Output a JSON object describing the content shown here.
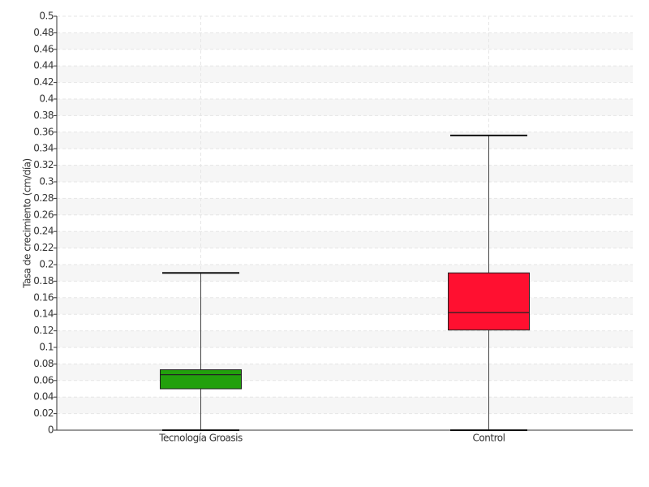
{
  "chart_data": {
    "type": "box",
    "y_label": "Tasa de crecimiento (cm/día)",
    "categories": [
      "Tecnología Groasis",
      "Control"
    ],
    "boxes": [
      {
        "min": 0,
        "q1": 0.05,
        "median": 0.067,
        "q3": 0.073,
        "max": 0.19,
        "color": "#22a00c"
      },
      {
        "min": 0,
        "q1": 0.121,
        "median": 0.142,
        "q3": 0.19,
        "max": 0.356,
        "color": "#ff1030"
      }
    ],
    "ylim": [
      0,
      0.5
    ],
    "yticks": [
      0,
      0.02,
      0.04,
      0.06,
      0.08,
      0.1,
      0.12,
      0.14,
      0.16,
      0.18,
      0.2,
      0.22,
      0.24,
      0.26,
      0.28,
      0.3,
      0.32,
      0.34,
      0.36,
      0.38,
      0.4,
      0.42,
      0.44,
      0.46,
      0.48,
      0.5
    ],
    "grid": true
  }
}
